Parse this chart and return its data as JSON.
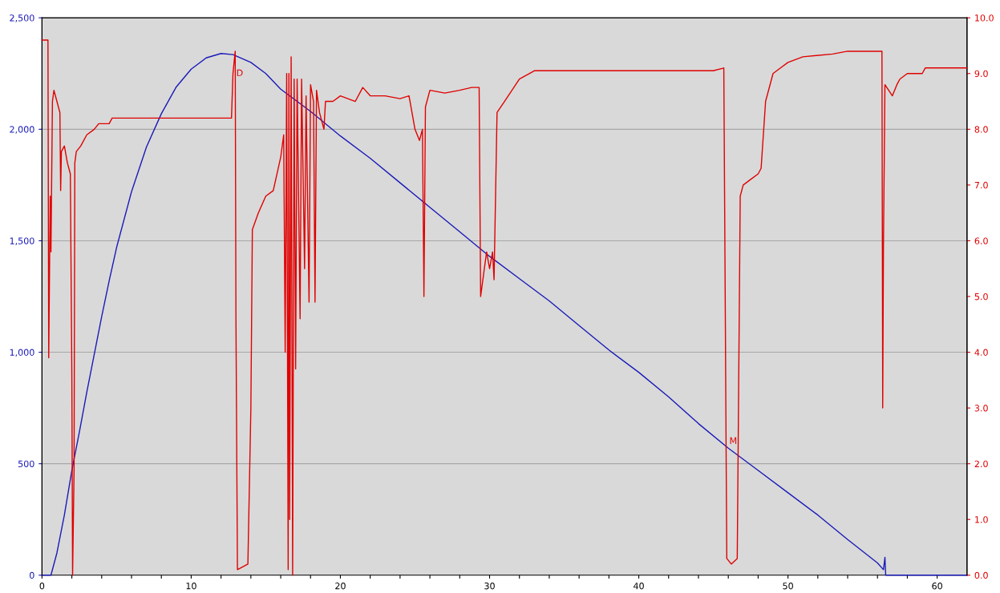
{
  "chart_data": {
    "type": "line",
    "xlim": [
      0,
      62
    ],
    "ylim": [
      0,
      2500
    ],
    "y2lim": [
      0,
      10
    ],
    "xticks": [
      0,
      {
        "value": 2,
        "label": null
      },
      {
        "value": 4,
        "label": null
      },
      {
        "value": 6,
        "label": null
      },
      {
        "value": 8,
        "label": null
      },
      10,
      {
        "value": 12,
        "label": null
      },
      {
        "value": 14,
        "label": null
      },
      {
        "value": 16,
        "label": null
      },
      {
        "value": 18,
        "label": null
      },
      20,
      {
        "value": 22,
        "label": null
      },
      {
        "value": 24,
        "label": null
      },
      {
        "value": 26,
        "label": null
      },
      {
        "value": 28,
        "label": null
      },
      30,
      {
        "value": 32,
        "label": null
      },
      {
        "value": 34,
        "label": null
      },
      {
        "value": 36,
        "label": null
      },
      {
        "value": 38,
        "label": null
      },
      40,
      {
        "value": 42,
        "label": null
      },
      {
        "value": 44,
        "label": null
      },
      {
        "value": 46,
        "label": null
      },
      {
        "value": 48,
        "label": null
      },
      50,
      {
        "value": 52,
        "label": null
      },
      {
        "value": 54,
        "label": null
      },
      {
        "value": 56,
        "label": null
      },
      {
        "value": 58,
        "label": null
      },
      60
    ],
    "yticks": [
      {
        "value": 0,
        "label": "0"
      },
      {
        "value": 500,
        "label": "500"
      },
      {
        "value": 1000,
        "label": "1,000"
      },
      {
        "value": 1500,
        "label": "1,500"
      },
      {
        "value": 2000,
        "label": "2,000"
      },
      {
        "value": 2500,
        "label": "2,500"
      }
    ],
    "y2ticks": [
      {
        "value": 0,
        "label": "0.0"
      },
      {
        "value": 1,
        "label": "1.0"
      },
      {
        "value": 2,
        "label": "2.0"
      },
      {
        "value": 3,
        "label": "3.0"
      },
      {
        "value": 4,
        "label": "4.0"
      },
      {
        "value": 5,
        "label": "5.0"
      },
      {
        "value": 6,
        "label": "6.0"
      },
      {
        "value": 7,
        "label": "7.0"
      },
      {
        "value": 8,
        "label": "8.0"
      },
      {
        "value": 9,
        "label": "9.0"
      },
      {
        "value": 10,
        "label": "10.0"
      }
    ],
    "grid": "y",
    "legend": false,
    "marker": "none",
    "line_style": "solid",
    "annotations": [
      {
        "text": "D",
        "x": 12.8,
        "y": 2250
      },
      {
        "text": "M",
        "x": 45.85,
        "y": 600
      }
    ],
    "series": [
      {
        "color": "#1a1ab8",
        "x": [
          0,
          0.6,
          1.0,
          1.5,
          2.0,
          2.5,
          3,
          3.5,
          4,
          4.5,
          5,
          6,
          7,
          8,
          9,
          10,
          11,
          12,
          12.8,
          14,
          15,
          16,
          18,
          20,
          22,
          24,
          26,
          28,
          30,
          32,
          34,
          36,
          38,
          40,
          42,
          44,
          46,
          48,
          50,
          52,
          54,
          56,
          56.4,
          56.5,
          56.55,
          62
        ],
        "values": [
          0,
          0,
          100,
          270,
          470,
          640,
          820,
          990,
          1160,
          1320,
          1470,
          1720,
          1920,
          2070,
          2190,
          2270,
          2320,
          2340,
          2335,
          2300,
          2250,
          2180,
          2080,
          1970,
          1870,
          1760,
          1650,
          1540,
          1430,
          1330,
          1230,
          1120,
          1010,
          910,
          800,
          680,
          570,
          470,
          370,
          270,
          160,
          55,
          25,
          80,
          0,
          0
        ]
      },
      {
        "color": "#e00000",
        "axis": "y2",
        "x": [
          0,
          0.4,
          0.45,
          0.55,
          0.6,
          0.7,
          0.8,
          1.0,
          1.2,
          1.25,
          1.3,
          1.5,
          1.7,
          1.9,
          2.0,
          2.05,
          2.15,
          2.2,
          2.3,
          2.6,
          3.0,
          3.5,
          3.8,
          4.5,
          4.7,
          12.7,
          12.8,
          12.95,
          13.0,
          13.1,
          13.8,
          14.0,
          14.1,
          14.5,
          15,
          15.5,
          16,
          16.2,
          16.3,
          16.4,
          16.5,
          16.55,
          16.6,
          16.7,
          16.8,
          16.9,
          17.0,
          17.1,
          17.3,
          17.4,
          17.6,
          17.7,
          17.9,
          18.0,
          18.2,
          18.3,
          18.4,
          18.6,
          18.9,
          19.0,
          19.5,
          20,
          21,
          21.5,
          22,
          23,
          24,
          24.6,
          25.0,
          25.3,
          25.5,
          25.6,
          25.7,
          26,
          27,
          28,
          28.8,
          29.3,
          29.4,
          29.6,
          29.8,
          30.0,
          30.2,
          30.3,
          30.5,
          31,
          32,
          33,
          35,
          37,
          40,
          43,
          45,
          45.7,
          45.8,
          45.85,
          45.9,
          46.2,
          46.6,
          46.8,
          47,
          47.5,
          48,
          48.2,
          48.5,
          49,
          49.5,
          50,
          51,
          53,
          54,
          56.3,
          56.35,
          56.4,
          56.5,
          57,
          57.3,
          57.5,
          58,
          59,
          59.2,
          62
        ],
        "values": [
          9.6,
          9.6,
          3.9,
          6.8,
          5.8,
          8.5,
          8.7,
          8.5,
          8.3,
          6.9,
          7.6,
          7.7,
          7.4,
          7.2,
          3.6,
          0,
          1.9,
          7.4,
          7.6,
          7.7,
          7.9,
          8.0,
          8.1,
          8.1,
          8.2,
          8.2,
          9.0,
          9.4,
          4.6,
          0.1,
          0.2,
          3.0,
          6.2,
          6.5,
          6.8,
          6.9,
          7.5,
          7.9,
          4.0,
          9.0,
          0.1,
          9.0,
          1.0,
          9.3,
          0,
          8.9,
          3.7,
          8.9,
          4.6,
          8.9,
          5.5,
          8.6,
          4.9,
          8.8,
          8.5,
          4.9,
          8.7,
          8.3,
          8.0,
          8.5,
          8.5,
          8.6,
          8.5,
          8.75,
          8.6,
          8.6,
          8.55,
          8.6,
          8.0,
          7.8,
          8.0,
          5.0,
          8.4,
          8.7,
          8.65,
          8.7,
          8.75,
          8.75,
          5.0,
          5.4,
          5.8,
          5.5,
          5.8,
          5.3,
          8.3,
          8.5,
          8.9,
          9.05,
          9.05,
          9.05,
          9.05,
          9.05,
          9.05,
          9.1,
          4.7,
          2.4,
          0.3,
          0.2,
          0.3,
          6.8,
          7.0,
          7.1,
          7.2,
          7.3,
          8.5,
          9.0,
          9.1,
          9.2,
          9.3,
          9.35,
          9.4,
          9.4,
          3.0,
          5.9,
          8.8,
          8.6,
          8.8,
          8.9,
          9.0,
          9.0,
          9.1,
          9.1
        ]
      }
    ]
  }
}
